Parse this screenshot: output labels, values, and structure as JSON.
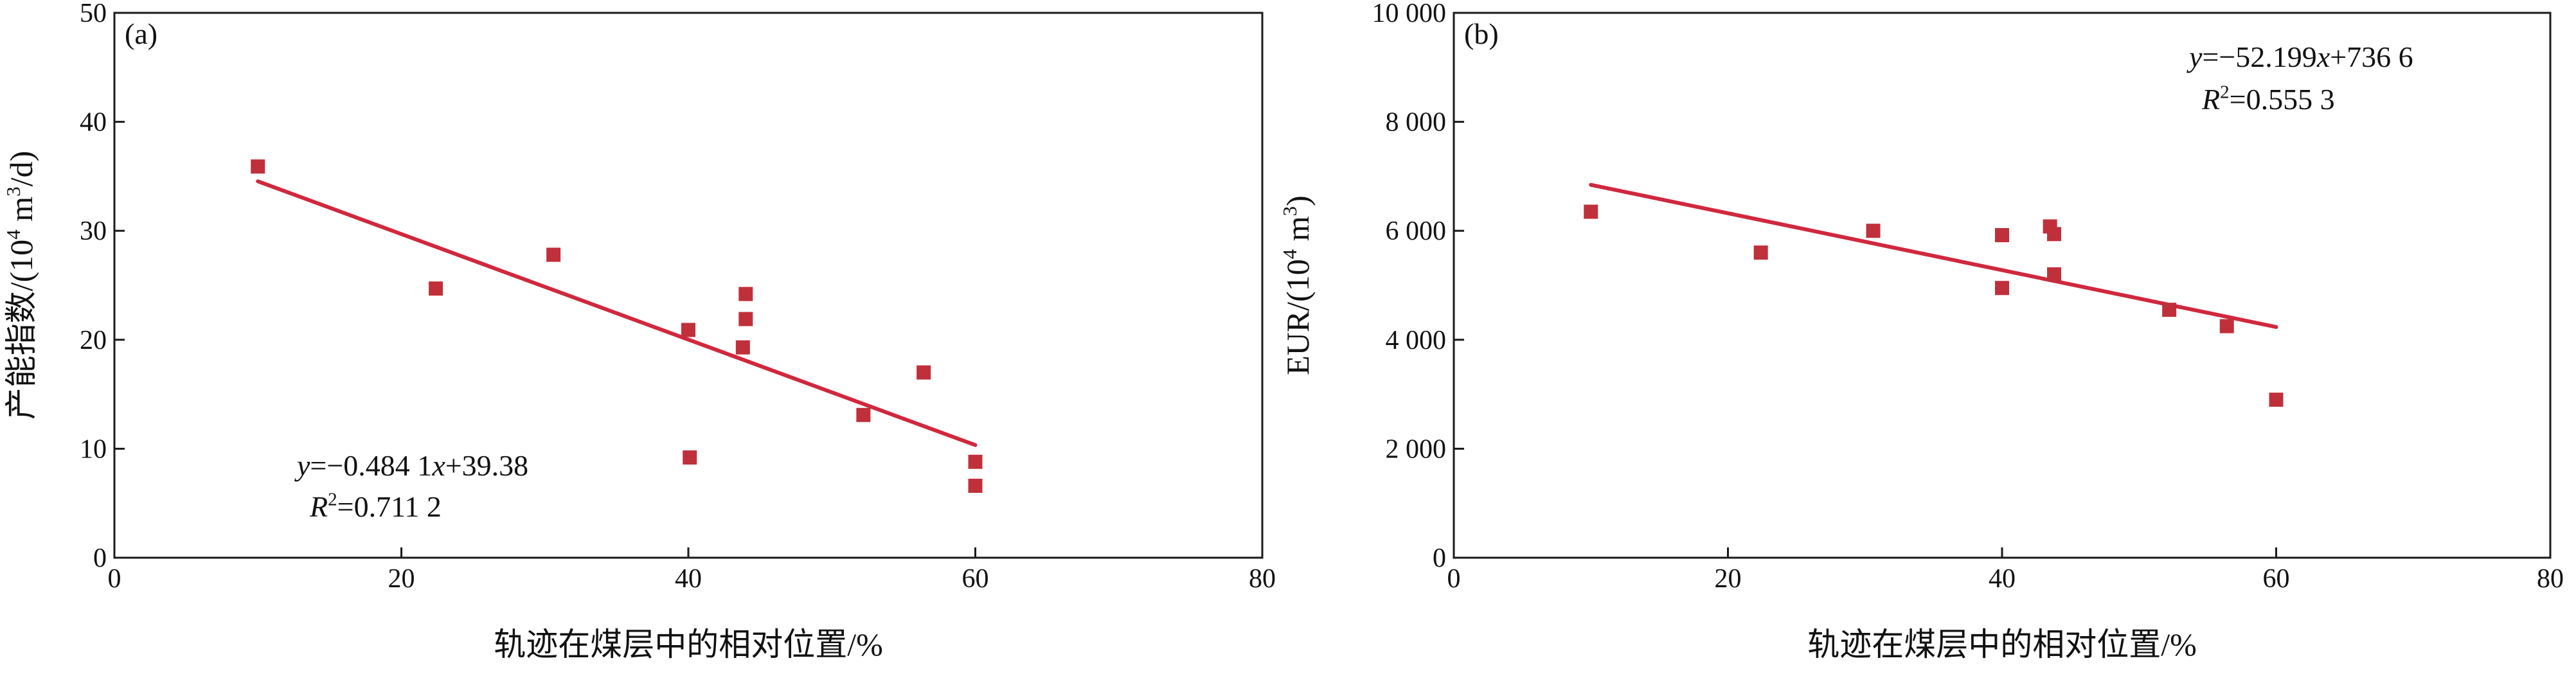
{
  "chart_data": [
    {
      "type": "scatter",
      "panel_label": "(a)",
      "ylabel": "产能指数/(10⁴ m³/d)",
      "xlabel": "轨迹在煤层中的相对位置/%",
      "xlim": [
        0,
        80
      ],
      "ylim": [
        0,
        50
      ],
      "x_ticks": [
        0,
        20,
        40,
        60,
        80
      ],
      "y_ticks": [
        0,
        10,
        20,
        30,
        40,
        50
      ],
      "x_tick_labels": [
        "0",
        "20",
        "40",
        "60",
        "80"
      ],
      "y_tick_labels": [
        "0",
        "10",
        "20",
        "30",
        "40",
        "50"
      ],
      "grid": false,
      "series": [
        {
          "points": [
            [
              10,
              35.9
            ],
            [
              22.4,
              24.7
            ],
            [
              30.6,
              27.8
            ],
            [
              40,
              20.9
            ],
            [
              40.1,
              9.2
            ],
            [
              43.8,
              19.3
            ],
            [
              44,
              21.9
            ],
            [
              44,
              24.2
            ],
            [
              52.2,
              13.1
            ],
            [
              56.4,
              17.0
            ],
            [
              60,
              8.8
            ],
            [
              60,
              6.6
            ]
          ]
        }
      ],
      "trendline": {
        "slope": -0.4841,
        "intercept": 39.38,
        "x_range": [
          10,
          60
        ]
      },
      "equation_line1": "y=−0.484 1x+39.38",
      "equation_line2": "R²=0.711 2",
      "colors": {
        "marker": "#c0303a",
        "trendline": "#d0283e",
        "axis": "#1a1a1a"
      }
    },
    {
      "type": "scatter",
      "panel_label": "(b)",
      "ylabel": "EUR/(10⁴ m³)",
      "xlabel": "轨迹在煤层中的相对位置/%",
      "xlim": [
        0,
        80
      ],
      "ylim": [
        0,
        10000
      ],
      "x_ticks": [
        0,
        20,
        40,
        60,
        80
      ],
      "y_ticks": [
        0,
        2000,
        4000,
        6000,
        8000,
        10000
      ],
      "x_tick_labels": [
        "0",
        "20",
        "40",
        "60",
        "80"
      ],
      "y_tick_labels": [
        "0",
        "2 000",
        "4 000",
        "6 000",
        "8 000",
        "10 000"
      ],
      "grid": false,
      "series": [
        {
          "points": [
            [
              10,
              6350
            ],
            [
              22.4,
              5600
            ],
            [
              30.6,
              6000
            ],
            [
              40,
              5920
            ],
            [
              40,
              4950
            ],
            [
              43.5,
              6080
            ],
            [
              43.8,
              5940
            ],
            [
              43.8,
              5200
            ],
            [
              52.2,
              4550
            ],
            [
              56.4,
              4250
            ],
            [
              60,
              2900
            ]
          ]
        }
      ],
      "trendline": {
        "slope": -52.199,
        "intercept": 7366,
        "x_range": [
          10,
          60
        ]
      },
      "equation_line1": "y=−52.199x+736 6",
      "equation_line2": "R²=0.555 3",
      "colors": {
        "marker": "#c0303a",
        "trendline": "#d0283e",
        "axis": "#1a1a1a"
      }
    }
  ]
}
